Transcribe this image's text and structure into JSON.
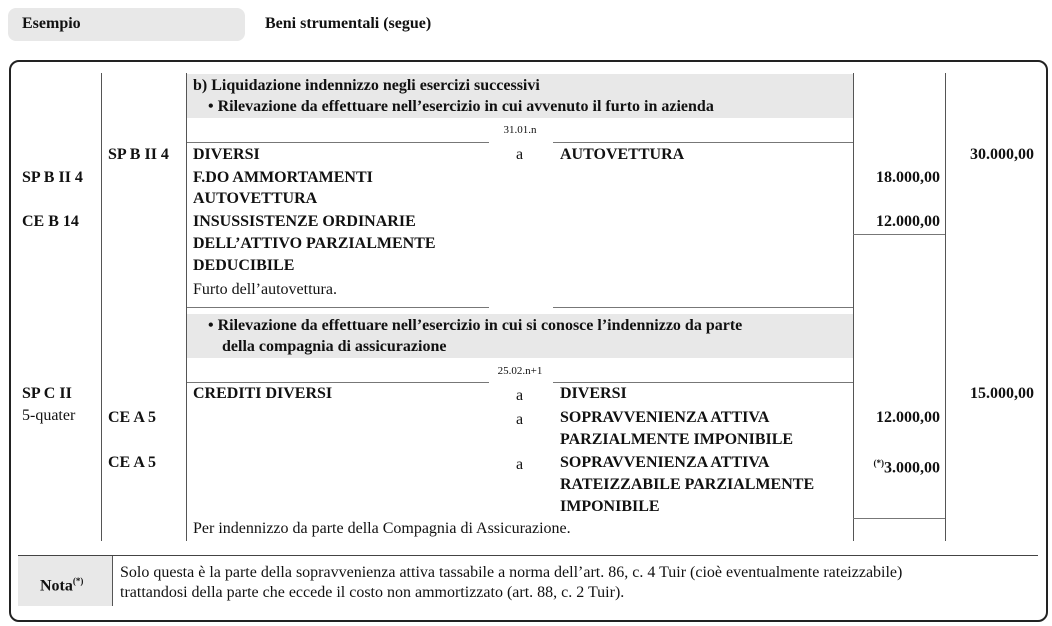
{
  "header": {
    "label": "Esempio",
    "title": "Beni strumentali (segue)"
  },
  "section": {
    "title": "b) Liquidazione indennizzo negli esercizi successivi",
    "step1": "• Rilevazione da effettuare nell’esercizio in cui avvenuto il furto in azienda",
    "step2_line1": "• Rilevazione da effettuare nell’esercizio in cui si conosce l’indennizzo da parte",
    "step2_line2": "della compagnia di assicurazione"
  },
  "entry1": {
    "date": "31.01.n",
    "credit_code": "SP B II 4",
    "debit": "DIVERSI",
    "a": "a",
    "credit": "AUTOVETTURA",
    "total": "30.000,00",
    "lines": [
      {
        "code": "SP B II 4",
        "text": [
          "F.DO AMMORTAMENTI",
          "AUTOVETTURA"
        ],
        "amount": "18.000,00"
      },
      {
        "code": "CE B 14",
        "text": [
          "INSUSSISTENZE ORDINARIE",
          "DELL’ATTIVO PARZIALMENTE",
          "DEDUCIBILE"
        ],
        "amount": "12.000,00"
      }
    ],
    "description": "Furto dell’autovettura."
  },
  "entry2": {
    "date": "25.02.n+1",
    "debit_code": [
      "SP C II",
      "5-quater"
    ],
    "debit": "CREDITI DIVERSI",
    "a": "a",
    "credit": "DIVERSI",
    "total": "15.000,00",
    "lines": [
      {
        "code": "CE A 5",
        "a": "a",
        "text": [
          "SOPRAVVENIENZA ATTIVA",
          "PARZIALMENTE IMPONIBILE"
        ],
        "amount": "12.000,00"
      },
      {
        "code": "CE A 5",
        "a": "a",
        "text": [
          "SOPRAVVENIENZA ATTIVA",
          "RATEIZZABILE PARZIALMENTE",
          "IMPONIBILE"
        ],
        "note_mark": "(*)",
        "amount": "3.000,00"
      }
    ],
    "description": "Per indennizzo da parte della Compagnia di Assicurazione."
  },
  "note": {
    "label": "Nota",
    "mark": "(*)",
    "line1": "Solo questa è la parte della sopravvenienza attiva tassabile a norma dell’art. 86, c. 4 Tuir (cioè eventualmente rateizzabile)",
    "line2": "trattandosi della parte che eccede il costo non ammortizzato (art. 88, c. 2 Tuir)."
  }
}
